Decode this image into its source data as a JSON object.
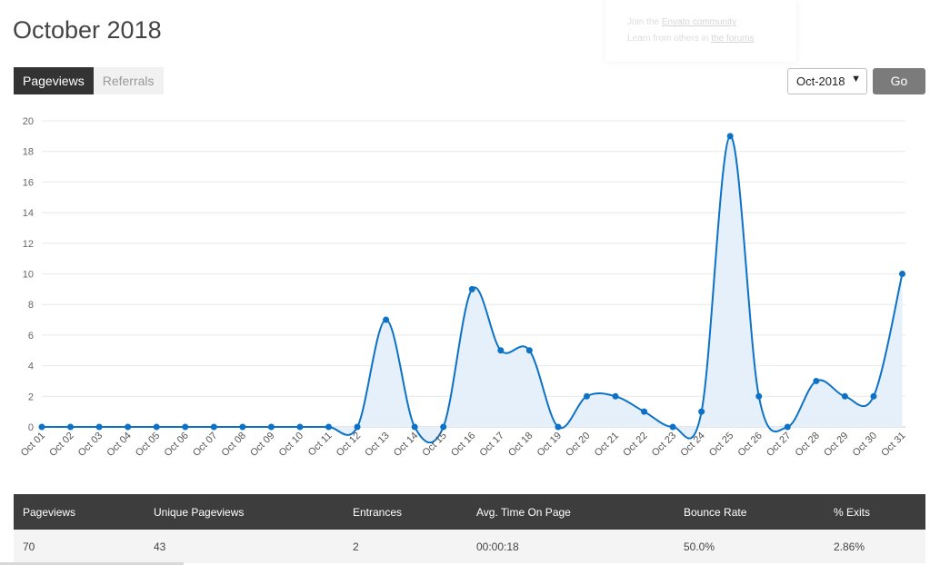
{
  "page": {
    "title": "October 2018"
  },
  "promo": {
    "line1_prefix": "Join the ",
    "line1_link": "Envato community",
    "line2_prefix": "Learn from others in ",
    "line2_link": "the forums"
  },
  "tabs": [
    {
      "label": "Pageviews",
      "active": true
    },
    {
      "label": "Referrals",
      "active": false
    }
  ],
  "month_select": {
    "value": "Oct-2018"
  },
  "go_button": {
    "label": "Go"
  },
  "colors": {
    "line": "#0d72c6",
    "fill": "#e6f0fa",
    "grid": "#e8e8e8"
  },
  "chart_data": {
    "type": "area",
    "x": [
      "Oct 01",
      "Oct 02",
      "Oct 03",
      "Oct 04",
      "Oct 05",
      "Oct 06",
      "Oct 07",
      "Oct 08",
      "Oct 09",
      "Oct 10",
      "Oct 11",
      "Oct 12",
      "Oct 13",
      "Oct 14",
      "Oct 15",
      "Oct 16",
      "Oct 17",
      "Oct 18",
      "Oct 19",
      "Oct 20",
      "Oct 21",
      "Oct 22",
      "Oct 23",
      "Oct 24",
      "Oct 25",
      "Oct 26",
      "Oct 27",
      "Oct 28",
      "Oct 29",
      "Oct 30",
      "Oct 31"
    ],
    "values": [
      0,
      0,
      0,
      0,
      0,
      0,
      0,
      0,
      0,
      0,
      0,
      0,
      7,
      0,
      0,
      9,
      5,
      5,
      0,
      2,
      2,
      1,
      0,
      1,
      19,
      2,
      0,
      3,
      2,
      2,
      10
    ],
    "ylim": [
      0,
      20
    ],
    "yticks": [
      0,
      2,
      4,
      6,
      8,
      10,
      12,
      14,
      16,
      18,
      20
    ],
    "title": "",
    "xlabel": "",
    "ylabel": "",
    "grid": "horizontal"
  },
  "stats": {
    "headers": [
      "Pageviews",
      "Unique Pageviews",
      "Entrances",
      "Avg. Time On Page",
      "Bounce Rate",
      "% Exits"
    ],
    "values": [
      "70",
      "43",
      "2",
      "00:00:18",
      "50.0%",
      "2.86%"
    ]
  }
}
